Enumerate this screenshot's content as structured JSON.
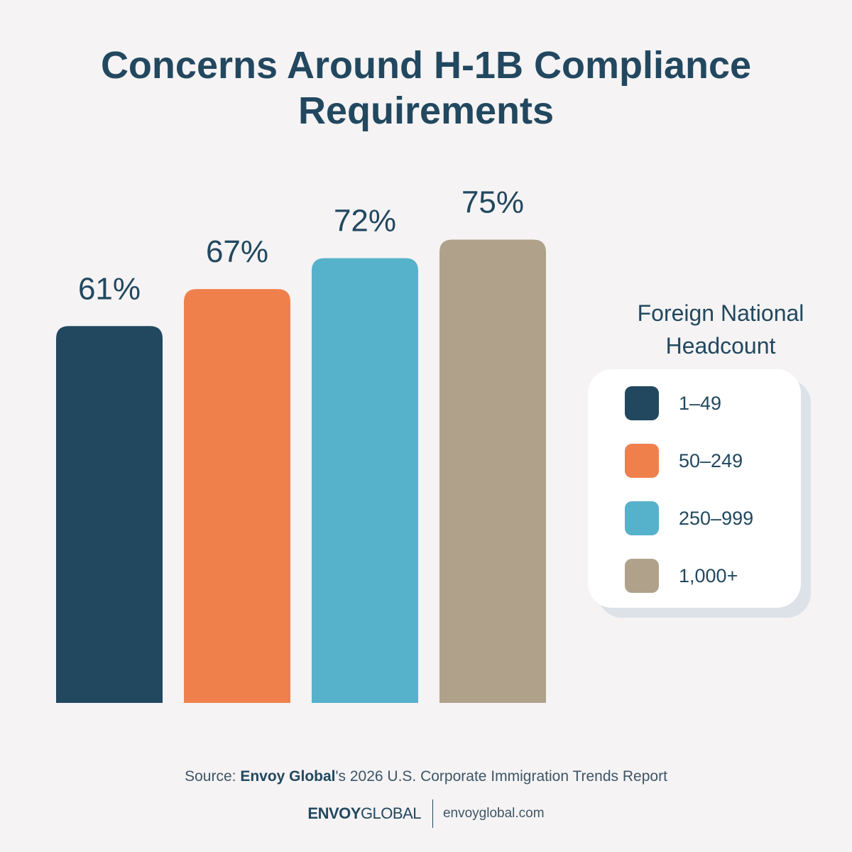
{
  "title_line1": "Concerns Around H-1B Compliance",
  "title_line2": "Requirements",
  "legend": {
    "title_line1": "Foreign National",
    "title_line2": "Headcount"
  },
  "source": {
    "prefix": "Source: ",
    "brand": "Envoy Global",
    "suffix": "'s 2026 U.S. Corporate Immigration Trends Report"
  },
  "footer": {
    "logo_bold": "ENVOY",
    "logo_light": "GLOBAL",
    "website": "envoyglobal.com"
  },
  "chart_data": {
    "type": "bar",
    "categories": [
      "1–49",
      "50–249",
      "250–999",
      "1,000+"
    ],
    "values": [
      61,
      67,
      72,
      75
    ],
    "value_labels": [
      "61%",
      "67%",
      "72%",
      "75%"
    ],
    "colors": [
      "#22485f",
      "#ef804c",
      "#56b1cb",
      "#b0a18b"
    ],
    "ylim": [
      0,
      100
    ],
    "grid": false,
    "legend_position": "right"
  }
}
